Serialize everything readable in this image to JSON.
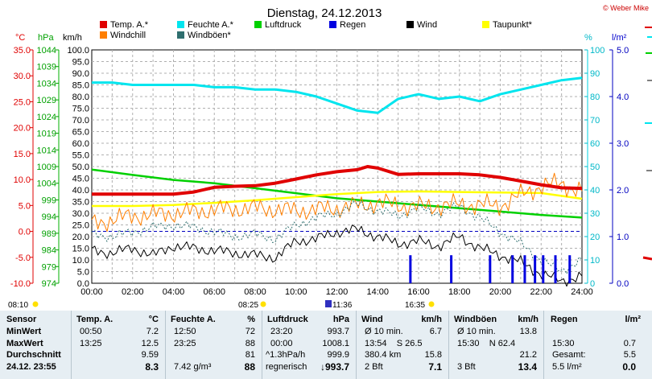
{
  "header": {
    "date": "Dienstag, 24.12.2013",
    "credit": "© Weber Mike"
  },
  "axis_units": {
    "temp": "°C",
    "pressure": "hPa",
    "speed": "km/h",
    "humidity": "%",
    "rain": "l/m²"
  },
  "legend": [
    {
      "label": "Temp. A.*",
      "color": "#e00000"
    },
    {
      "label": "Feuchte A.*",
      "color": "#00e5ee"
    },
    {
      "label": "Luftdruck",
      "color": "#00d000"
    },
    {
      "label": "Regen",
      "color": "#0000e0"
    },
    {
      "label": "Wind",
      "color": "#000000"
    },
    {
      "label": "Taupunkt*",
      "color": "#ffff00"
    },
    {
      "label": "Windchill",
      "color": "#ff7f00"
    },
    {
      "label": "Windböen*",
      "color": "#2f6f6f"
    }
  ],
  "colors": {
    "temp": "#e00000",
    "humidity": "#00e5ee",
    "pressure": "#00d000",
    "rain": "#0000e0",
    "wind": "#000000",
    "dewpoint": "#ffff00",
    "windchill": "#ff7f00",
    "gusts": "#2f6f6f"
  },
  "sun": {
    "sunrise": "08:10",
    "sunset": "16:35",
    "sun_up_label": "08:25",
    "sun_noon_label": "11:36"
  },
  "chart_data": {
    "type": "line",
    "title": "Dienstag, 24.12.2013",
    "x_ticks": [
      "00:00",
      "02:00",
      "04:00",
      "06:00",
      "08:00",
      "10:00",
      "12:00",
      "14:00",
      "16:00",
      "18:00",
      "20:00",
      "22:00",
      "24:00"
    ],
    "xlim": [
      0,
      24
    ],
    "axes": {
      "speed": {
        "lim": [
          0,
          100
        ],
        "ticks": [
          "0.0",
          "5.0",
          "10.0",
          "15.0",
          "20.0",
          "25.0",
          "30.0",
          "35.0",
          "40.0",
          "45.0",
          "50.0",
          "55.0",
          "60.0",
          "65.0",
          "70.0",
          "75.0",
          "80.0",
          "85.0",
          "90.0",
          "95.0",
          "100.0"
        ]
      },
      "temp": {
        "lim": [
          -10,
          35
        ],
        "ticks": [
          "-10.0",
          "-5.0",
          "0.0",
          "5.0",
          "10.0",
          "15.0",
          "20.0",
          "25.0",
          "30.0",
          "35.0"
        ]
      },
      "pressure": {
        "lim": [
          974,
          1044
        ],
        "ticks": [
          "974",
          "979",
          "984",
          "989",
          "994",
          "999",
          "1004",
          "1009",
          "1014",
          "1019",
          "1024",
          "1029",
          "1034",
          "1039",
          "1044"
        ]
      },
      "humidity": {
        "lim": [
          0,
          100
        ],
        "ticks": [
          "0",
          "10",
          "20",
          "30",
          "40",
          "50",
          "60",
          "70",
          "80",
          "90",
          "100"
        ]
      },
      "rain": {
        "lim": [
          0,
          5
        ],
        "ticks": [
          "0.0",
          "1.0",
          "2.0",
          "3.0",
          "4.0",
          "5.0"
        ]
      }
    },
    "reference_line": {
      "axis": "temp",
      "value": 0
    },
    "series": [
      {
        "name": "Temp. A.*",
        "axis": "temp",
        "x": [
          0,
          2,
          4,
          5,
          6,
          7,
          8,
          9,
          10,
          11,
          12,
          13,
          13.5,
          14,
          15,
          16,
          17,
          18,
          19,
          20,
          21,
          22,
          23,
          24
        ],
        "y": [
          7.2,
          7.2,
          7.2,
          7.6,
          8.5,
          8.7,
          8.8,
          9.3,
          10.1,
          10.9,
          11.5,
          11.9,
          12.5,
          12.2,
          11.0,
          11.1,
          11.1,
          11.1,
          10.9,
          10.4,
          9.7,
          9.0,
          8.4,
          8.3
        ]
      },
      {
        "name": "Feuchte A.*",
        "axis": "humidity",
        "x": [
          0,
          1,
          2,
          3,
          4,
          5,
          6,
          7,
          8,
          9,
          10,
          11,
          12,
          13,
          14,
          15,
          16,
          17,
          18,
          19,
          20,
          21,
          22,
          23,
          24
        ],
        "y": [
          86,
          86,
          85,
          85,
          85,
          85,
          84,
          84,
          83,
          83,
          82,
          80,
          77,
          74,
          73,
          79,
          81,
          79,
          80,
          78,
          81,
          83,
          85,
          87,
          88
        ]
      },
      {
        "name": "Luftdruck",
        "axis": "pressure",
        "x": [
          0,
          2,
          4,
          6,
          8,
          10,
          12,
          14,
          16,
          18,
          20,
          22,
          24
        ],
        "y": [
          1008.1,
          1006.5,
          1005,
          1004,
          1002.5,
          1001,
          999.5,
          998.5,
          997.5,
          996.5,
          995.5,
          994.5,
          993.7
        ]
      },
      {
        "name": "Taupunkt*",
        "axis": "temp",
        "x": [
          0,
          2,
          4,
          6,
          8,
          10,
          12,
          14,
          16,
          18,
          20,
          22,
          24
        ],
        "y": [
          4.9,
          4.9,
          5.1,
          5.5,
          6.0,
          6.6,
          7.2,
          7.6,
          7.7,
          7.6,
          7.5,
          7.4,
          6.3
        ]
      },
      {
        "name": "Windchill",
        "axis": "temp",
        "x": [
          0,
          2,
          4,
          6,
          8,
          10,
          12,
          14,
          16,
          18,
          20,
          21,
          22,
          23,
          24
        ],
        "y": [
          1.5,
          3.0,
          3.5,
          4.2,
          4.5,
          4.0,
          4.5,
          5.5,
          4.7,
          5.2,
          5.0,
          7.0,
          8.8,
          9.2,
          7.7
        ]
      },
      {
        "name": "Wind",
        "axis": "speed",
        "x": [
          0,
          1,
          2,
          3,
          4,
          5,
          6,
          7,
          8,
          9,
          10,
          11,
          12,
          13,
          14,
          15,
          16,
          17,
          18,
          19,
          20,
          21,
          22,
          23,
          23.5,
          24
        ],
        "y": [
          14,
          13,
          15,
          12,
          16,
          15,
          14,
          13,
          12,
          11,
          18,
          19,
          22,
          23,
          20,
          17,
          18,
          16,
          20,
          15,
          12,
          9,
          4,
          1,
          2,
          3
        ]
      },
      {
        "name": "Windböen*",
        "axis": "speed",
        "x": [
          0,
          1,
          2,
          3,
          4,
          5,
          6,
          7,
          8,
          9,
          10,
          11,
          12,
          13,
          14,
          15,
          16,
          17,
          18,
          19,
          20,
          21,
          22,
          23,
          23.5,
          24
        ],
        "y": [
          21,
          20,
          22,
          24,
          25,
          24,
          22,
          20,
          21,
          19,
          25,
          28,
          30,
          34,
          31,
          29,
          32,
          30,
          33,
          28,
          22,
          17,
          10,
          5,
          8,
          10
        ]
      },
      {
        "name": "Regen",
        "axis": "rain",
        "type": "bar",
        "x": [
          15.6,
          17.6,
          19.5,
          20.6,
          21.2,
          21.7,
          22.1,
          22.7,
          23.4
        ],
        "y": [
          0.6,
          0.6,
          0.6,
          0.6,
          0.6,
          0.6,
          0.6,
          0.6,
          0.6
        ]
      }
    ]
  },
  "panel": {
    "sensor": {
      "header": "Sensor",
      "rows": [
        [
          "MinWert",
          ""
        ],
        [
          "MaxWert",
          ""
        ],
        [
          "Durchschnitt",
          ""
        ],
        [
          "24.12. 23:55",
          ""
        ]
      ]
    },
    "temp": {
      "header": "Temp. A.",
      "unit": "°C",
      "rows": [
        [
          "00:50",
          "7.2"
        ],
        [
          "13:25",
          "12.5"
        ],
        [
          "",
          "9.59"
        ],
        [
          "",
          "8.3"
        ]
      ]
    },
    "humidity": {
      "header": "Feuchte A.",
      "unit": "%",
      "rows": [
        [
          "12:50",
          "72"
        ],
        [
          "23:25",
          "88"
        ],
        [
          "",
          "81"
        ],
        [
          "7.42 g/m³",
          "88"
        ]
      ]
    },
    "pressure": {
      "header": "Luftdruck",
      "unit": "hPa",
      "rows": [
        [
          "23:20",
          "993.7"
        ],
        [
          "00:00",
          "1008.1"
        ],
        [
          "^1.3hPa/h",
          "999.9"
        ],
        [
          "regnerisch",
          "↓993.7"
        ]
      ]
    },
    "wind": {
      "header": "Wind",
      "unit": "km/h",
      "rows": [
        [
          "Ø 10 min.",
          "6.7"
        ],
        [
          "13:54    S 26.5",
          ""
        ],
        [
          "380.4 km",
          "15.8"
        ],
        [
          "2 Bft",
          "7.1"
        ]
      ]
    },
    "gusts": {
      "header": "Windböen",
      "unit": "km/h",
      "rows": [
        [
          "Ø 10 min.",
          "13.8"
        ],
        [
          "15:30    N 62.4",
          ""
        ],
        [
          "",
          "21.2"
        ],
        [
          "3 Bft",
          "13.4"
        ]
      ]
    },
    "rain": {
      "header": "Regen",
      "unit": "l/m²",
      "rows": [
        [
          "",
          ""
        ],
        [
          "15:30",
          "0.7"
        ],
        [
          "Gesamt:",
          "5.5"
        ],
        [
          "5.5 l/m²",
          "0.0"
        ]
      ]
    }
  }
}
